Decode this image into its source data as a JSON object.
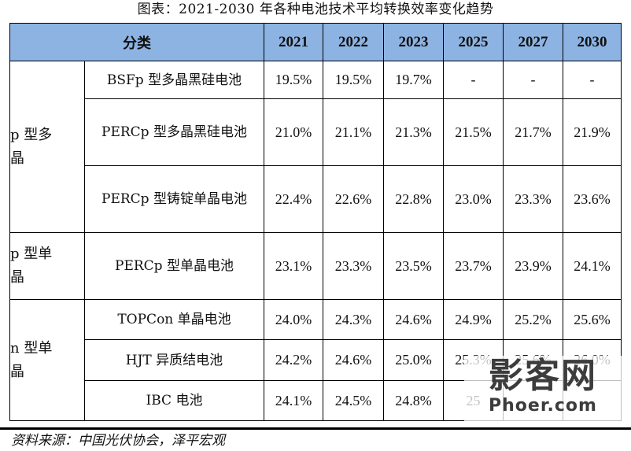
{
  "caption": "图表：2021-2030 年各种电池技术平均转换效率变化趋势",
  "header": {
    "category": "分类",
    "years": [
      "2021",
      "2022",
      "2023",
      "2025",
      "2027",
      "2030"
    ]
  },
  "groups": [
    {
      "label": "p 型多晶",
      "rows": [
        {
          "name": "BSFp 型多晶黑硅电池",
          "values": [
            "19.5%",
            "19.5%",
            "19.7%",
            "-",
            "-",
            "-"
          ]
        },
        {
          "name": "PERCp 型多晶黑硅电池",
          "values": [
            "21.0%",
            "21.1%",
            "21.3%",
            "21.5%",
            "21.7%",
            "21.9%"
          ]
        },
        {
          "name": "PERCp 型铸锭单晶电池",
          "values": [
            "22.4%",
            "22.6%",
            "22.8%",
            "23.0%",
            "23.3%",
            "23.6%"
          ]
        }
      ]
    },
    {
      "label": "p 型单晶",
      "rows": [
        {
          "name": "PERCp 型单晶电池",
          "values": [
            "23.1%",
            "23.3%",
            "23.5%",
            "23.7%",
            "23.9%",
            "24.1%"
          ]
        }
      ]
    },
    {
      "label": "n 型单晶",
      "rows": [
        {
          "name": "TOPCon 单晶电池",
          "values": [
            "24.0%",
            "24.3%",
            "24.6%",
            "24.9%",
            "25.2%",
            "25.6%"
          ]
        },
        {
          "name": "HJT 异质结电池",
          "values": [
            "24.2%",
            "24.6%",
            "25.0%",
            "25.3%",
            "25.6%",
            "26.0%"
          ]
        },
        {
          "name": "IBC 电池",
          "values": [
            "24.1%",
            "24.5%",
            "24.8%",
            "25",
            "",
            ""
          ]
        }
      ]
    }
  ],
  "source": "资料来源：中国光伏协会，泽平宏观",
  "watermark": {
    "cn": "影客网",
    "en": "Phoer.com"
  }
}
